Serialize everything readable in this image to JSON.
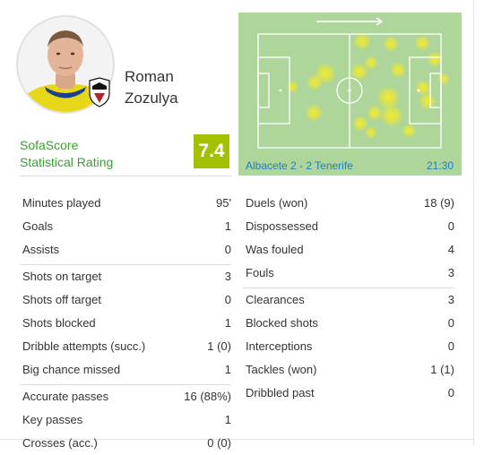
{
  "player": {
    "first_name": "Roman",
    "last_name": "Zozulya",
    "rating_label_line1": "SofaScore",
    "rating_label_line2": "Statistical Rating",
    "rating": "7.4"
  },
  "heatmap": {
    "match": "Albacete 2 - 2 Tenerife",
    "time": "21:30",
    "pitch_color": "#aed59a",
    "hot_color": "#f2ea2e"
  },
  "colors": {
    "rating_green": "#3a9e2f",
    "rating_badge": "#a4c000",
    "link_blue": "#1e7fc4"
  },
  "stats_left": [
    {
      "label": "Minutes played",
      "value": "95'",
      "group_start": false
    },
    {
      "label": "Goals",
      "value": "1",
      "group_start": false
    },
    {
      "label": "Assists",
      "value": "0",
      "group_start": false
    },
    {
      "label": "Shots on target",
      "value": "3",
      "group_start": true
    },
    {
      "label": "Shots off target",
      "value": "0",
      "group_start": false
    },
    {
      "label": "Shots blocked",
      "value": "1",
      "group_start": false
    },
    {
      "label": "Dribble attempts (succ.)",
      "value": "1 (0)",
      "group_start": false
    },
    {
      "label": "Big chance missed",
      "value": "1",
      "group_start": false
    },
    {
      "label": "Accurate passes",
      "value": "16 (88%)",
      "group_start": true
    },
    {
      "label": "Key passes",
      "value": "1",
      "group_start": false
    },
    {
      "label": "Crosses (acc.)",
      "value": "0 (0)",
      "group_start": false
    }
  ],
  "stats_right": [
    {
      "label": "Duels (won)",
      "value": "18 (9)",
      "group_start": false
    },
    {
      "label": "Dispossessed",
      "value": "0",
      "group_start": false
    },
    {
      "label": "Was fouled",
      "value": "4",
      "group_start": false
    },
    {
      "label": "Fouls",
      "value": "3",
      "group_start": false
    },
    {
      "label": "Clearances",
      "value": "3",
      "group_start": true
    },
    {
      "label": "Blocked shots",
      "value": "0",
      "group_start": false
    },
    {
      "label": "Interceptions",
      "value": "0",
      "group_start": false
    },
    {
      "label": "Tackles (won)",
      "value": "1 (1)",
      "group_start": false
    },
    {
      "label": "Dribbled past",
      "value": "0",
      "group_start": false
    }
  ]
}
